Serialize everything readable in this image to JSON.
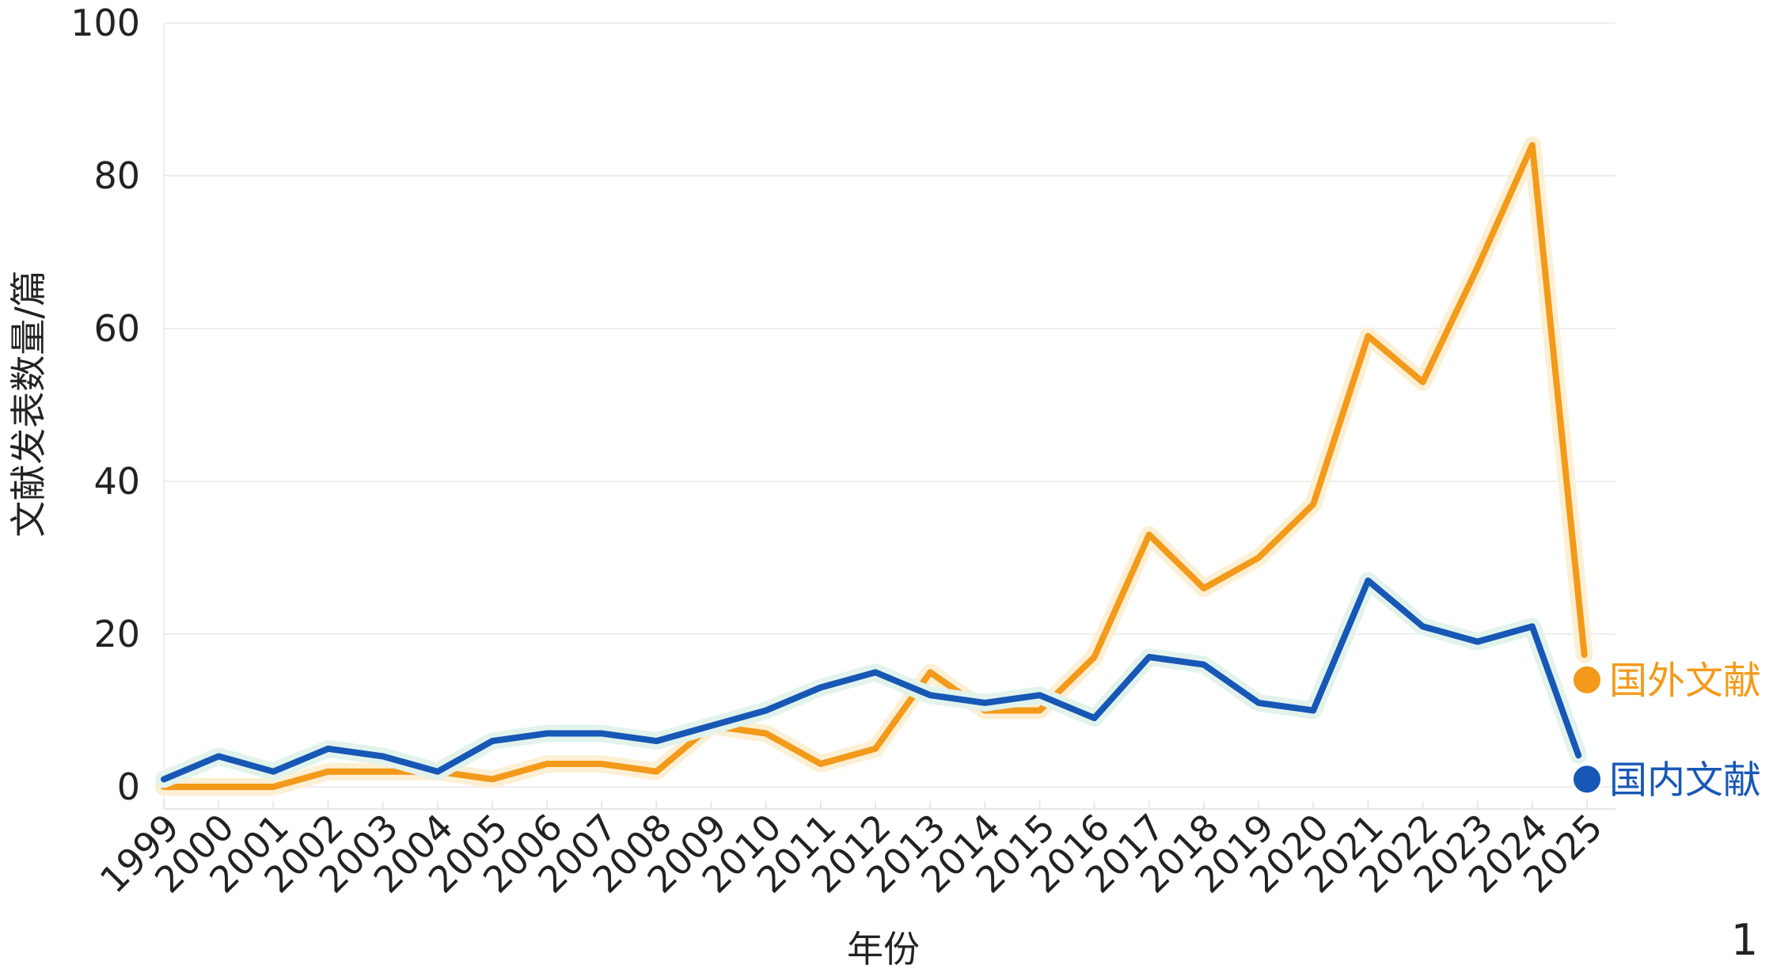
{
  "chart_data": {
    "type": "line",
    "title": "",
    "xlabel": "年份",
    "ylabel": "文献发表数量/篇",
    "ylim": [
      0,
      100
    ],
    "yticks": [
      0,
      20,
      40,
      60,
      80,
      100
    ],
    "grid": true,
    "legend_placement": "right, at line ends",
    "categories": [
      "1999",
      "2000",
      "2001",
      "2002",
      "2003",
      "2004",
      "2005",
      "2006",
      "2007",
      "2008",
      "2009",
      "2010",
      "2011",
      "2012",
      "2013",
      "2014",
      "2015",
      "2016",
      "2017",
      "2018",
      "2019",
      "2020",
      "2021",
      "2022",
      "2023",
      "2024",
      "2025"
    ],
    "series": [
      {
        "name": "国外文献",
        "color": "#F39A1A",
        "glow": "#FCEFD3",
        "values": [
          0,
          0,
          0,
          2,
          2,
          2,
          1,
          3,
          3,
          2,
          8,
          7,
          3,
          5,
          15,
          10,
          10,
          17,
          33,
          26,
          30,
          37,
          59,
          53,
          68,
          84,
          14
        ]
      },
      {
        "name": "国内文献",
        "color": "#1757B5",
        "glow": "#E2F3EC",
        "values": [
          1,
          4,
          2,
          5,
          4,
          2,
          6,
          7,
          7,
          6,
          8,
          10,
          13,
          15,
          12,
          11,
          12,
          9,
          17,
          16,
          11,
          10,
          27,
          21,
          19,
          21,
          1
        ]
      }
    ],
    "corner_label": "1"
  }
}
